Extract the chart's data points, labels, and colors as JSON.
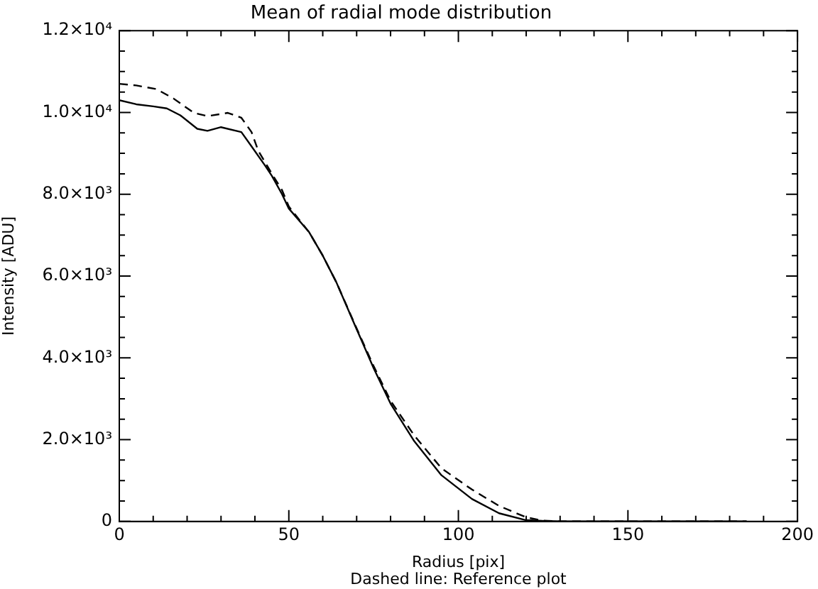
{
  "chart_data": {
    "type": "line",
    "title": "Mean of radial mode distribution",
    "xlabel": "Radius [pix]",
    "ylabel": "Intensity [ADU]",
    "annotations": [
      "Dashed line: Reference plot"
    ],
    "xlim": [
      0,
      200
    ],
    "ylim": [
      0,
      12000
    ],
    "xticks": [
      0,
      {
        "value": 10,
        "label": null
      },
      {
        "value": 20,
        "label": null
      },
      {
        "value": 30,
        "label": null
      },
      {
        "value": 40,
        "label": null
      },
      50,
      {
        "value": 60,
        "label": null
      },
      {
        "value": 70,
        "label": null
      },
      {
        "value": 80,
        "label": null
      },
      {
        "value": 90,
        "label": null
      },
      100,
      {
        "value": 110,
        "label": null
      },
      {
        "value": 120,
        "label": null
      },
      {
        "value": 130,
        "label": null
      },
      {
        "value": 140,
        "label": null
      },
      150,
      {
        "value": 160,
        "label": null
      },
      {
        "value": 170,
        "label": null
      },
      {
        "value": 180,
        "label": null
      },
      {
        "value": 190,
        "label": null
      },
      200
    ],
    "yticks": [
      0,
      {
        "value": 500,
        "label": null
      },
      {
        "value": 1000,
        "label": null
      },
      {
        "value": 1500,
        "label": null
      },
      {
        "value": 2000,
        "label": "2.0×10³"
      },
      {
        "value": 2500,
        "label": null
      },
      {
        "value": 3000,
        "label": null
      },
      {
        "value": 3500,
        "label": null
      },
      {
        "value": 4000,
        "label": "4.0×10³"
      },
      {
        "value": 4500,
        "label": null
      },
      {
        "value": 5000,
        "label": null
      },
      {
        "value": 5500,
        "label": null
      },
      {
        "value": 6000,
        "label": "6.0×10³"
      },
      {
        "value": 6500,
        "label": null
      },
      {
        "value": 7000,
        "label": null
      },
      {
        "value": 7500,
        "label": null
      },
      {
        "value": 8000,
        "label": "8.0×10³"
      },
      {
        "value": 8500,
        "label": null
      },
      {
        "value": 9000,
        "label": null
      },
      {
        "value": 9500,
        "label": null
      },
      {
        "value": 10000,
        "label": "1.0×10⁴"
      },
      {
        "value": 10500,
        "label": null
      },
      {
        "value": 11000,
        "label": null
      },
      {
        "value": 11500,
        "label": null
      },
      {
        "value": 12000,
        "label": "1.2×10⁴"
      }
    ],
    "grid": false,
    "legend": false,
    "marker": "none",
    "series": [
      {
        "color": "#000000",
        "line_style": "solid",
        "x": [
          0,
          5,
          10,
          14,
          18,
          23,
          26,
          30,
          36,
          39,
          43,
          45,
          48,
          50,
          56,
          60,
          64,
          70,
          75,
          80,
          87,
          95,
          104,
          112,
          120,
          130,
          185
        ],
        "values": [
          10300,
          10200,
          10150,
          10100,
          9930,
          9600,
          9550,
          9640,
          9520,
          9170,
          8700,
          8450,
          8000,
          7650,
          7070,
          6500,
          5850,
          4700,
          3750,
          2880,
          1960,
          1130,
          550,
          200,
          30,
          0,
          0
        ]
      },
      {
        "color": "#000000",
        "line_style": "dashed",
        "x": [
          0,
          5,
          11,
          16,
          22,
          26,
          32,
          36,
          39,
          41,
          45,
          48,
          50,
          56,
          60,
          64,
          70,
          75,
          80,
          87,
          95,
          104,
          112,
          120,
          125,
          130,
          185
        ],
        "values": [
          10700,
          10660,
          10570,
          10340,
          9990,
          9910,
          9990,
          9870,
          9520,
          9060,
          8500,
          8100,
          7700,
          7070,
          6500,
          5850,
          4720,
          3800,
          2950,
          2100,
          1300,
          780,
          380,
          100,
          20,
          0,
          0
        ]
      }
    ]
  }
}
